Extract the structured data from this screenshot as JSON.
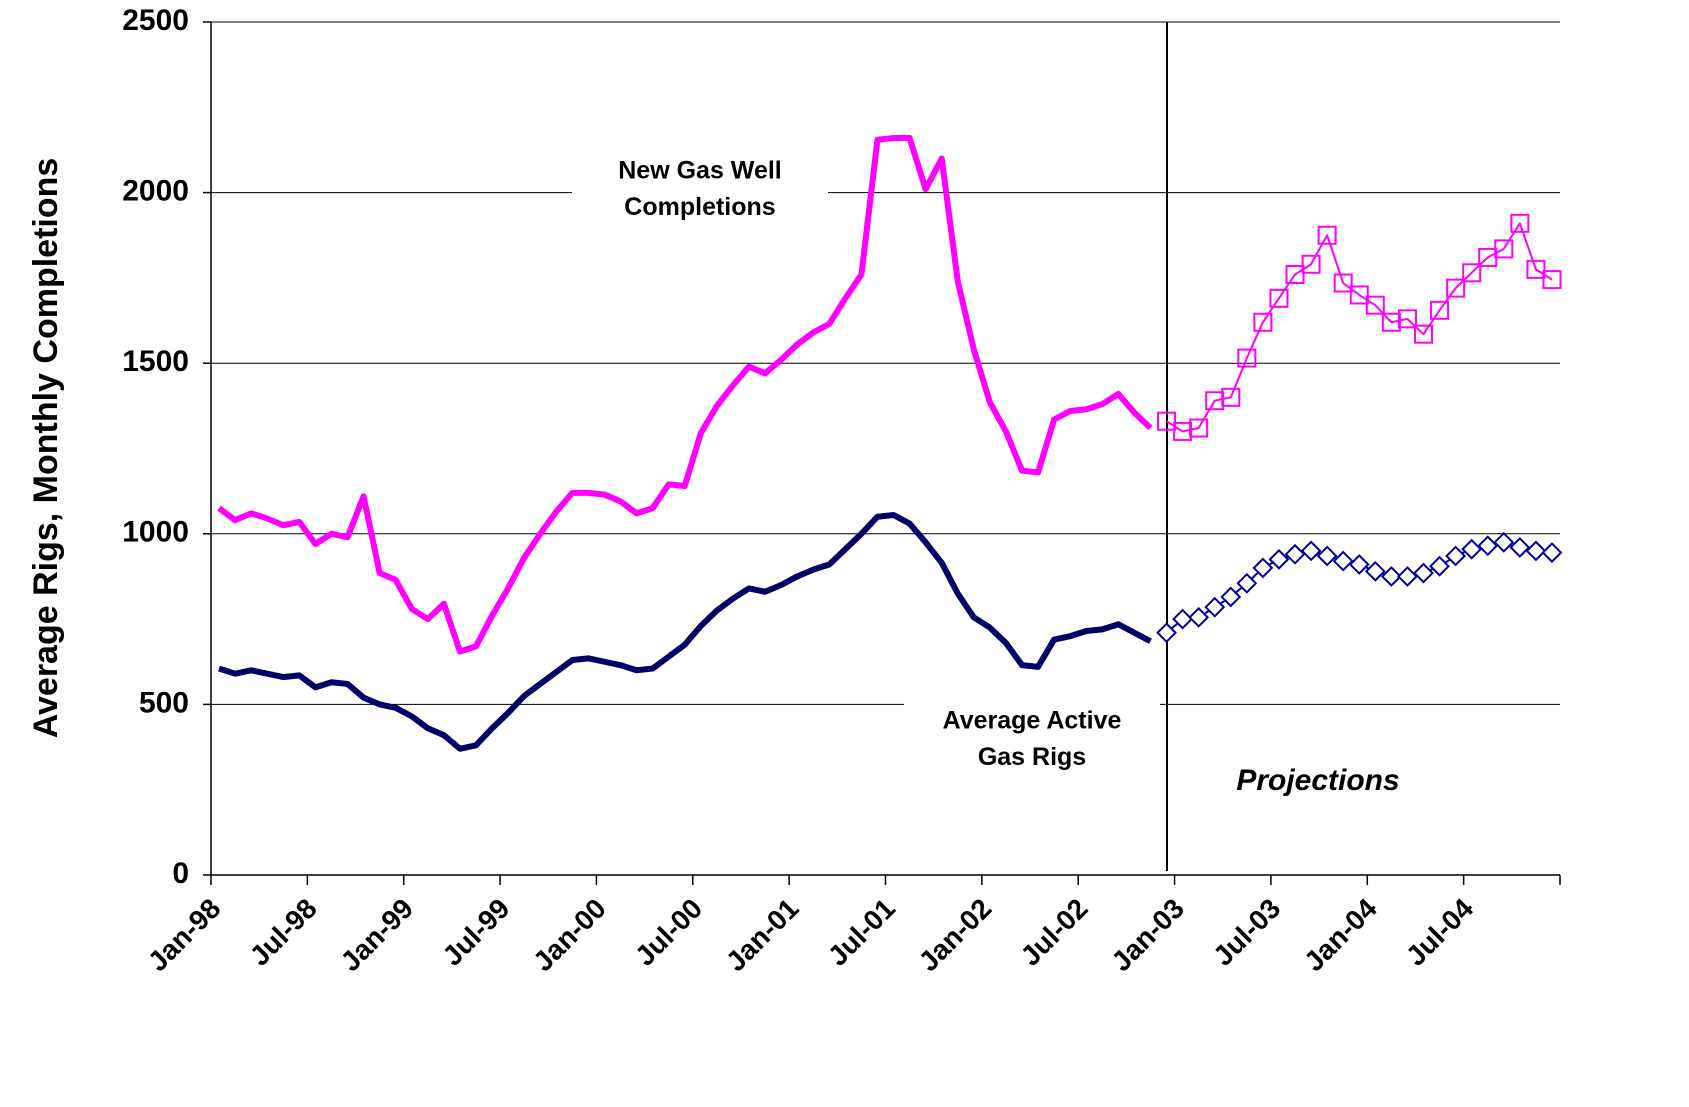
{
  "chart_data": {
    "type": "line",
    "y_label": "Average Rigs, Monthly Completions",
    "categories": [
      "Jan-98",
      null,
      null,
      null,
      null,
      null,
      "Jul-98",
      null,
      null,
      null,
      null,
      null,
      "Jan-99",
      null,
      null,
      null,
      null,
      null,
      "Jul-99",
      null,
      null,
      null,
      null,
      null,
      "Jan-00",
      null,
      null,
      null,
      null,
      null,
      "Jul-00",
      null,
      null,
      null,
      null,
      null,
      "Jan-01",
      null,
      null,
      null,
      null,
      null,
      "Jul-01",
      null,
      null,
      null,
      null,
      null,
      "Jan-02",
      null,
      null,
      null,
      null,
      null,
      "Jul-02",
      null,
      null,
      null,
      null,
      null,
      "Jan-03",
      null,
      null,
      null,
      null,
      null,
      "Jul-03",
      null,
      null,
      null,
      null,
      null,
      "Jan-04",
      null,
      null,
      null,
      null,
      null,
      "Jul-04",
      null,
      null,
      null,
      null,
      null
    ],
    "series": [
      {
        "color": "#ff00ff",
        "width": 6,
        "marker": "none",
        "values": [
          1075,
          1040,
          1060,
          1045,
          1025,
          1035,
          970,
          1000,
          990,
          1110,
          885,
          865,
          780,
          750,
          795,
          655,
          670,
          760,
          840,
          930,
          1000,
          1065,
          1120,
          1120,
          1115,
          1095,
          1060,
          1075,
          1145,
          1140,
          1295,
          1375,
          1435,
          1490,
          1470,
          1510,
          1555,
          1590,
          1615,
          1690,
          1760,
          2155,
          2160,
          2160,
          2010,
          2100,
          1740,
          1540,
          1385,
          1300,
          1185,
          1180,
          1335,
          1360,
          1365,
          1380,
          1410,
          1355,
          1310,
          null,
          null,
          null,
          null,
          null,
          null,
          null,
          null,
          null,
          null,
          null,
          null,
          null,
          null,
          null,
          null,
          null,
          null,
          null,
          null,
          null,
          null,
          null,
          null,
          null
        ]
      },
      {
        "color": "#000066",
        "width": 6,
        "marker": "none",
        "values": [
          605,
          590,
          600,
          590,
          580,
          585,
          550,
          565,
          560,
          520,
          500,
          490,
          465,
          430,
          410,
          370,
          380,
          430,
          475,
          525,
          560,
          595,
          630,
          635,
          625,
          615,
          600,
          605,
          640,
          675,
          730,
          775,
          810,
          840,
          830,
          850,
          875,
          895,
          910,
          955,
          1000,
          1050,
          1055,
          1030,
          975,
          915,
          825,
          755,
          725,
          680,
          615,
          610,
          690,
          700,
          715,
          720,
          735,
          710,
          685,
          null,
          null,
          null,
          null,
          null,
          null,
          null,
          null,
          null,
          null,
          null,
          null,
          null,
          null,
          null,
          null,
          null,
          null,
          null,
          null,
          null,
          null,
          null,
          null,
          null
        ]
      },
      {
        "color": "#ff00ff",
        "width": 2,
        "marker": "square",
        "values": [
          null,
          null,
          null,
          null,
          null,
          null,
          null,
          null,
          null,
          null,
          null,
          null,
          null,
          null,
          null,
          null,
          null,
          null,
          null,
          null,
          null,
          null,
          null,
          null,
          null,
          null,
          null,
          null,
          null,
          null,
          null,
          null,
          null,
          null,
          null,
          null,
          null,
          null,
          null,
          null,
          null,
          null,
          null,
          null,
          null,
          null,
          null,
          null,
          null,
          null,
          null,
          null,
          null,
          null,
          null,
          null,
          null,
          null,
          null,
          1330,
          1300,
          1310,
          1390,
          1400,
          1515,
          1620,
          1690,
          1760,
          1790,
          1875,
          1735,
          1700,
          1670,
          1620,
          1630,
          1585,
          1655,
          1720,
          1765,
          1810,
          1835,
          1910,
          1775,
          1745
        ]
      },
      {
        "color": "#000099",
        "width": 2,
        "marker": "diamond",
        "values": [
          null,
          null,
          null,
          null,
          null,
          null,
          null,
          null,
          null,
          null,
          null,
          null,
          null,
          null,
          null,
          null,
          null,
          null,
          null,
          null,
          null,
          null,
          null,
          null,
          null,
          null,
          null,
          null,
          null,
          null,
          null,
          null,
          null,
          null,
          null,
          null,
          null,
          null,
          null,
          null,
          null,
          null,
          null,
          null,
          null,
          null,
          null,
          null,
          null,
          null,
          null,
          null,
          null,
          null,
          null,
          null,
          null,
          null,
          null,
          710,
          750,
          755,
          785,
          815,
          855,
          900,
          925,
          940,
          950,
          935,
          920,
          910,
          890,
          875,
          875,
          885,
          905,
          935,
          955,
          965,
          975,
          960,
          950,
          945
        ]
      }
    ],
    "ylim": [
      0,
      2500
    ],
    "yticks": [
      0,
      500,
      1000,
      1500,
      2000,
      2500
    ],
    "grid": true,
    "annotations": [
      {
        "lines": [
          "New Gas Well",
          "Completions"
        ]
      },
      {
        "lines": [
          "Average Active",
          "Gas Rigs"
        ]
      },
      {
        "lines": [
          "Projections"
        ]
      }
    ]
  }
}
